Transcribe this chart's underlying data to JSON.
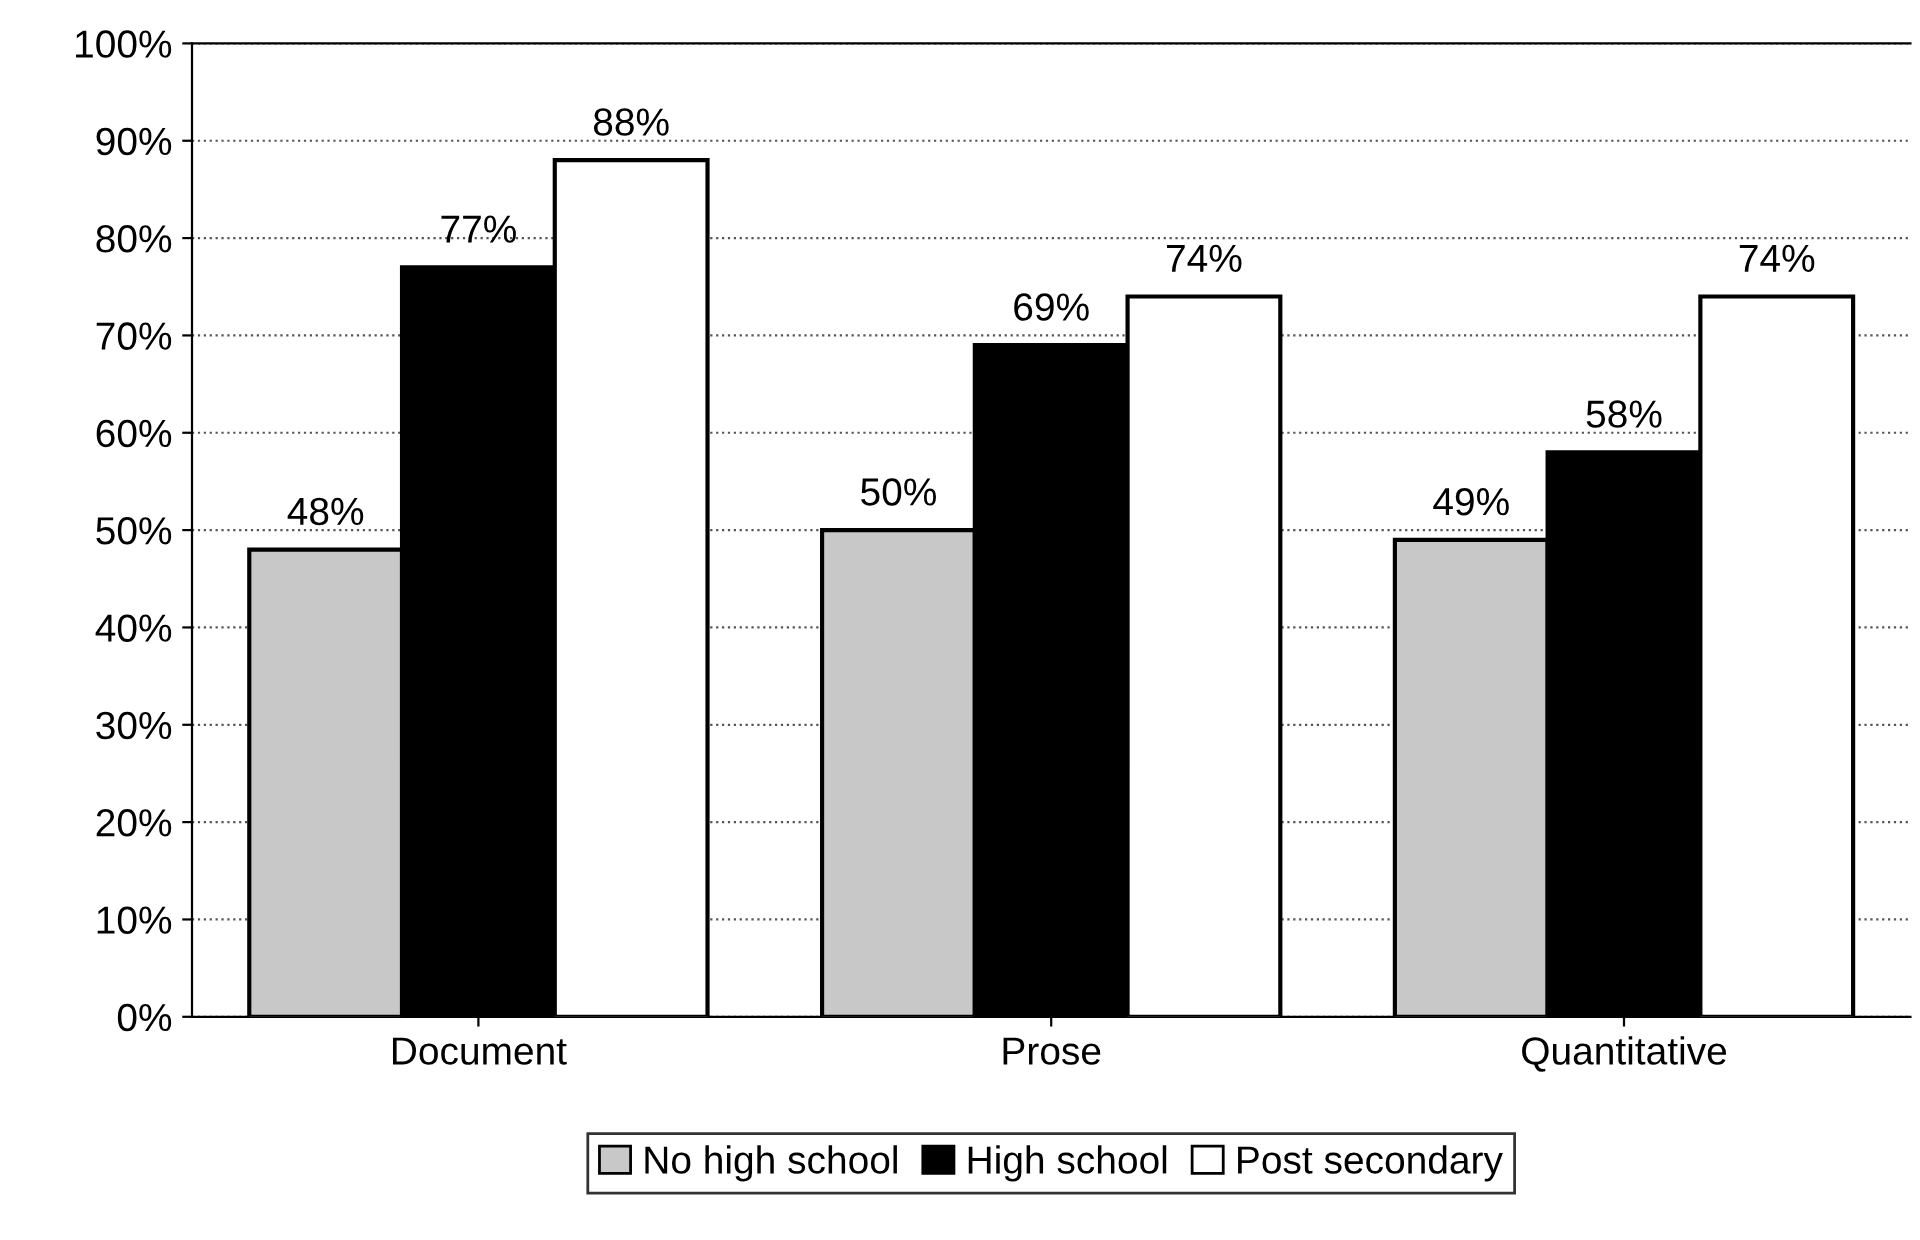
{
  "chart_data": {
    "type": "bar",
    "categories": [
      "Document",
      "Prose",
      "Quantitative"
    ],
    "series": [
      {
        "name": "No high school",
        "color": "#c8c8c8",
        "values": [
          48,
          50,
          49
        ],
        "value_labels": [
          "48%",
          "50%",
          "49%"
        ]
      },
      {
        "name": "High school",
        "color": "#000000",
        "values": [
          77,
          69,
          58
        ],
        "value_labels": [
          "77%",
          "69%",
          "58%"
        ]
      },
      {
        "name": "Post secondary",
        "color": "#ffffff",
        "values": [
          88,
          74,
          74
        ],
        "value_labels": [
          "88%",
          "74%",
          "74%"
        ]
      }
    ],
    "ylim": [
      0,
      100
    ],
    "yticks": [
      {
        "value": 0,
        "label": "0%"
      },
      {
        "value": 10,
        "label": "10%"
      },
      {
        "value": 20,
        "label": "20%"
      },
      {
        "value": 30,
        "label": "30%"
      },
      {
        "value": 40,
        "label": "40%"
      },
      {
        "value": 50,
        "label": "50%"
      },
      {
        "value": 60,
        "label": "60%"
      },
      {
        "value": 70,
        "label": "70%"
      },
      {
        "value": 80,
        "label": "80%"
      },
      {
        "value": 90,
        "label": "90%"
      },
      {
        "value": 100,
        "label": "100%"
      }
    ],
    "grid": "y",
    "legend": "bottom"
  }
}
